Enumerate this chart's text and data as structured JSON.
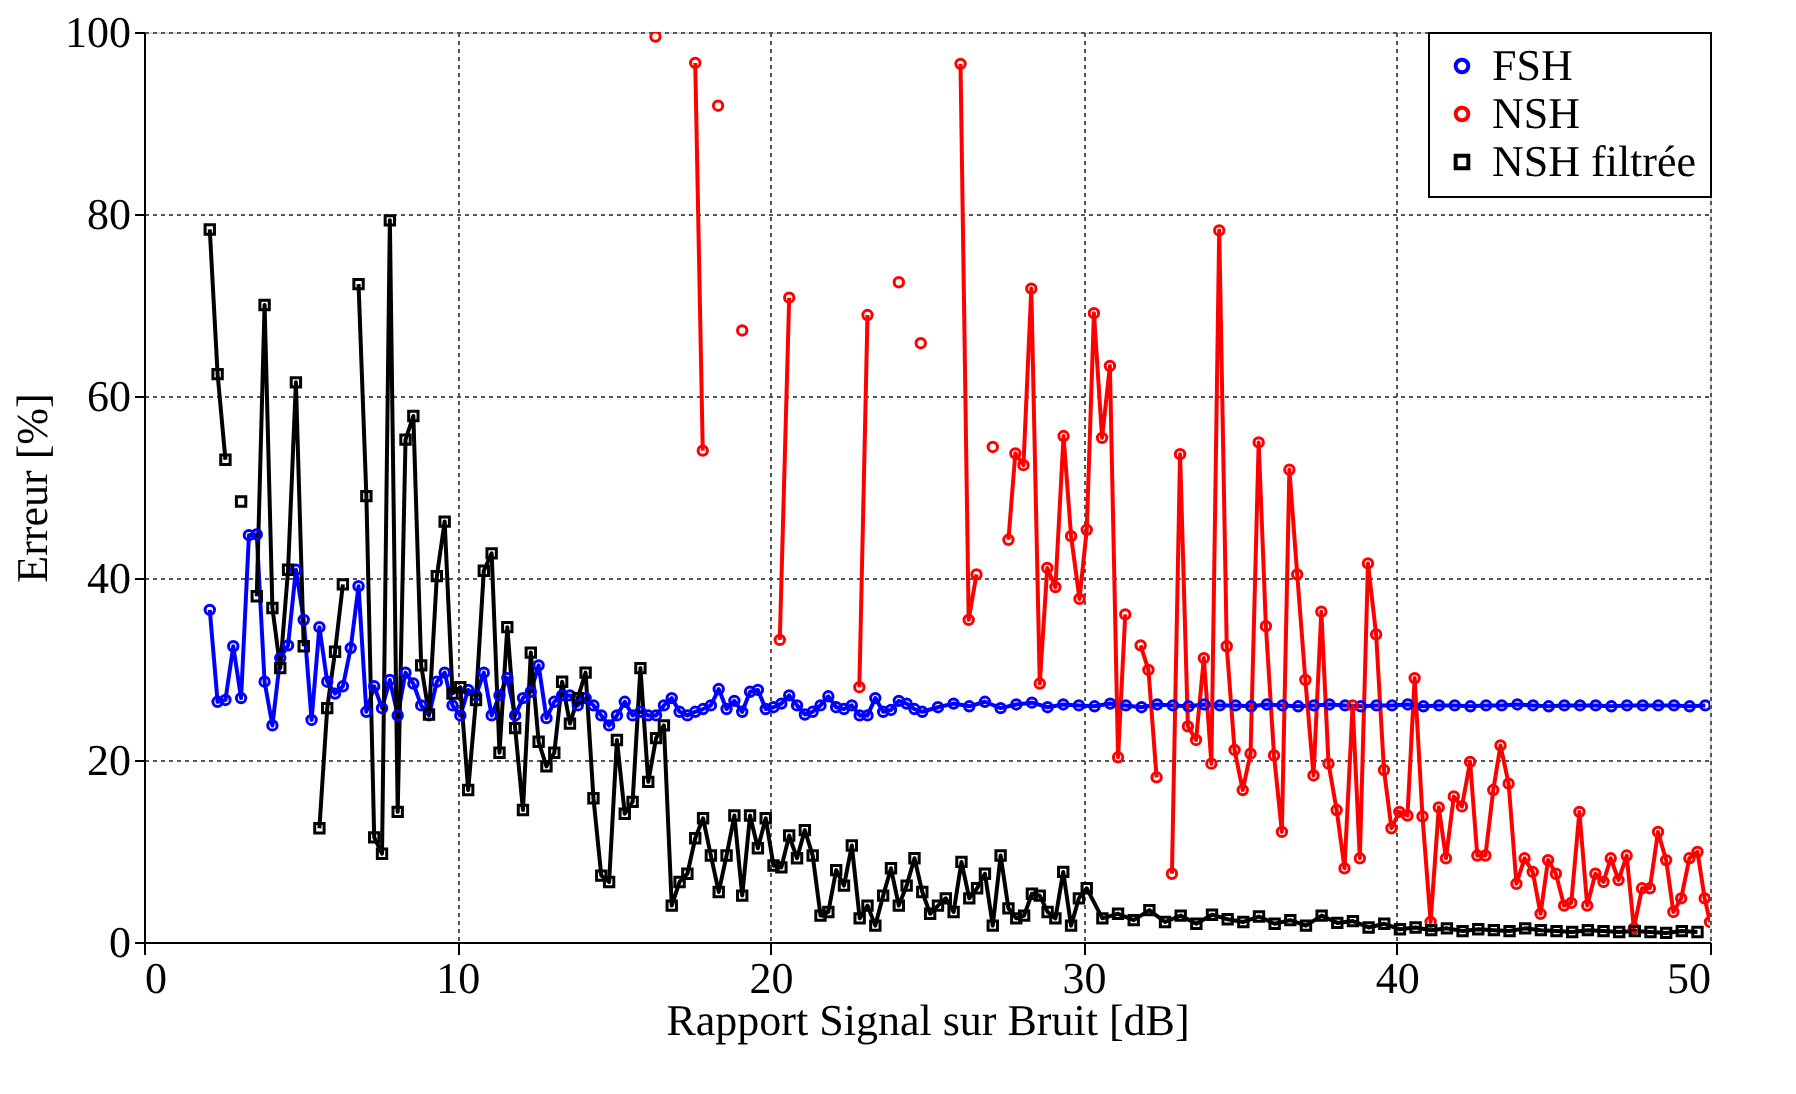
{
  "chart_data": {
    "type": "line",
    "xlabel": "Rapport Signal sur Bruit [dB]",
    "ylabel": "Erreur [%]",
    "xlim": [
      0,
      50
    ],
    "ylim": [
      0,
      100
    ],
    "xticks": [
      0,
      10,
      20,
      30,
      40,
      50
    ],
    "yticks": [
      0,
      20,
      40,
      60,
      80,
      100
    ],
    "grid": true,
    "legend": "top right",
    "line_style": "solid",
    "series": [
      {
        "name": "FSH",
        "color": "#0000ff",
        "marker": "circle",
        "x": [
          2.1,
          2.35,
          2.6,
          2.85,
          3.1,
          3.35,
          3.6,
          3.85,
          4.1,
          4.35,
          4.6,
          4.85,
          5.1,
          5.35,
          5.6,
          5.85,
          6.1,
          6.35,
          6.6,
          6.85,
          7.1,
          7.35,
          7.6,
          7.85,
          8.1,
          8.35,
          8.6,
          8.85,
          9.1,
          9.35,
          9.6,
          9.85,
          10.1,
          10.35,
          10.6,
          10.85,
          11.1,
          11.35,
          11.6,
          11.85,
          12.1,
          12.35,
          12.6,
          12.85,
          13.1,
          13.35,
          13.6,
          13.85,
          14.1,
          14.35,
          14.6,
          14.85,
          15.1,
          15.35,
          15.6,
          15.85,
          16.1,
          16.35,
          16.6,
          16.85,
          17.1,
          17.35,
          17.6,
          17.85,
          18.1,
          18.35,
          18.6,
          18.85,
          19.1,
          19.35,
          19.6,
          19.85,
          20.1,
          20.35,
          20.6,
          20.85,
          21.1,
          21.35,
          21.6,
          21.85,
          22.1,
          22.35,
          22.6,
          22.85,
          23.1,
          23.35,
          23.6,
          23.85,
          24.1,
          24.35,
          24.6,
          24.85,
          25.35,
          25.85,
          26.35,
          26.85,
          27.35,
          27.85,
          28.35,
          28.85,
          29.35,
          29.85,
          30.35,
          30.85,
          31.35,
          31.85,
          32.35,
          32.85,
          33.35,
          33.85,
          34.35,
          34.85,
          35.35,
          35.85,
          36.35,
          36.85,
          37.35,
          37.85,
          38.35,
          38.85,
          39.35,
          39.85,
          40.35,
          40.85,
          41.35,
          41.85,
          42.35,
          42.85,
          43.35,
          43.85,
          44.35,
          44.85,
          45.35,
          45.85,
          46.35,
          46.85,
          47.35,
          47.85,
          48.35,
          48.85,
          49.35,
          49.85
        ],
        "values": [
          36.5,
          26.4,
          26.6,
          32.5,
          26.8,
          44.7,
          44.8,
          28.6,
          23.8,
          31.2,
          32.6,
          40.9,
          35.4,
          24.4,
          34.6,
          28.6,
          27.3,
          28.1,
          32.3,
          39.1,
          25.3,
          28.1,
          25.7,
          28.8,
          24.9,
          29.6,
          28.4,
          26,
          24.9,
          28.6,
          29.6,
          26,
          24.9,
          27.7,
          27.1,
          29.6,
          24.9,
          27.1,
          29,
          24.9,
          26.8,
          27.5,
          30.4,
          24.6,
          26.4,
          27.1,
          27.1,
          26,
          26.8,
          26,
          24.9,
          23.8,
          24.9,
          26.4,
          24.9,
          25.3,
          24.9,
          24.9,
          26,
          26.8,
          25.3,
          24.9,
          25.3,
          25.6,
          26,
          27.8,
          25.6,
          26.5,
          25.3,
          27.5,
          27.7,
          25.6,
          25.8,
          26.2,
          27.1,
          26,
          25,
          25.3,
          26,
          27,
          25.8,
          25.6,
          26,
          24.9,
          24.9,
          26.8,
          25.3,
          25.5,
          26.5,
          26.2,
          25.6,
          25.3,
          25.8,
          26.2,
          25.9,
          26.4,
          25.7,
          26.1,
          26.3,
          25.8,
          26.1,
          26,
          25.9,
          26.2,
          26,
          25.8,
          26.1,
          26,
          25.9,
          26.1,
          26,
          26,
          25.9,
          26.1,
          26,
          25.9,
          26,
          26.1,
          26,
          25.9,
          26,
          26,
          26.1,
          25.9,
          26,
          26,
          25.9,
          26,
          26,
          26.1,
          26,
          25.9,
          26,
          26,
          26,
          25.9,
          26,
          26,
          26,
          26,
          25.9,
          26
        ]
      },
      {
        "name": "NSH",
        "color": "#ff0000",
        "marker": "circle",
        "x": [
          16.33,
          16.58,
          16.84,
          17.09,
          17.35,
          17.6,
          17.84,
          18.09,
          18.33,
          18.58,
          18.84,
          19.1,
          19.35,
          19.6,
          19.84,
          20.09,
          20.3,
          20.6,
          20.85,
          21.1,
          21.35,
          21.6,
          21.85,
          22.1,
          22.35,
          22.6,
          22.84,
          23.1,
          23.35,
          23.6,
          23.85,
          24.1,
          24.35,
          24.6,
          24.8,
          25.07,
          25.33,
          25.58,
          25.84,
          26.07,
          26.33,
          26.58,
          26.84,
          27.1,
          27.35,
          27.6,
          27.82,
          28.08,
          28.33,
          28.6,
          28.84,
          29.1,
          29.36,
          29.6,
          29.87,
          30.1,
          30.33,
          30.59,
          30.84,
          31.1,
          31.33,
          31.57,
          31.82,
          32.07,
          32.33,
          32.57,
          32.82,
          33.08,
          33.33,
          33.59,
          33.84,
          34.08,
          34.33,
          34.57,
          34.82,
          35.08,
          35.33,
          35.59,
          35.82,
          36.08,
          36.33,
          36.57,
          36.82,
          37.08,
          37.34,
          37.59,
          37.82,
          38.08,
          38.33,
          38.59,
          38.82,
          39.08,
          39.34,
          39.59,
          39.83,
          40.08,
          40.34,
          40.57,
          40.82,
          41.08,
          41.34,
          41.57,
          41.82,
          42.08,
          42.34,
          42.57,
          42.83,
          43.08,
          43.31,
          43.57,
          43.82,
          44.08,
          44.34,
          44.59,
          44.83,
          45.08,
          45.34,
          45.57,
          45.83,
          46.08,
          46.34,
          46.6,
          46.83,
          47.08,
          47.34,
          47.57,
          47.83,
          48.08,
          48.34,
          48.6,
          48.83,
          49.08,
          49.34,
          49.6,
          49.83,
          50
        ],
        "values": [
          99.5,
          null,
          null,
          null,
          null,
          96.6,
          54,
          null,
          91.9,
          null,
          null,
          67.2,
          null,
          null,
          null,
          null,
          33.2,
          70.8,
          null,
          null,
          null,
          null,
          null,
          null,
          null,
          null,
          28,
          68.9,
          null,
          null,
          null,
          72.5,
          null,
          null,
          65.8,
          null,
          null,
          null,
          null,
          96.5,
          35.4,
          40.4,
          null,
          54.4,
          null,
          44.2,
          53.7,
          52.4,
          71.8,
          28.4,
          41.1,
          39,
          55.6,
          44.6,
          37.7,
          45.3,
          69.1,
          55.4,
          63.3,
          20.3,
          36,
          null,
          32.6,
          29.9,
          18.1,
          null,
          7.5,
          53.6,
          23.7,
          22.2,
          31.2,
          19.6,
          78.2,
          32.5,
          21.1,
          16.7,
          20.7,
          54.9,
          34.7,
          20.5,
          12.1,
          51.9,
          40.4,
          28.8,
          18.3,
          36.3,
          19.6,
          14.5,
          8.1,
          26,
          9.2,
          41.6,
          33.8,
          18.9,
          12.5,
          14.3,
          13.9,
          29,
          13.8,
          2.2,
          14.8,
          9.2,
          16,
          14.9,
          19.8,
          9.5,
          9.5,
          16.7,
          21.6,
          17.4,
          6.4,
          9.2,
          7.7,
          3.1,
          9,
          7.5,
          4,
          4.3,
          14.3,
          4,
          7.5,
          6.6,
          9.2,
          6.8,
          9.5,
          1.5,
          5.9,
          5.9,
          12.1,
          9,
          3.3,
          4.8,
          9.2,
          9.9,
          4.8,
          2.2
        ]
      },
      {
        "name": "NSH filtrée",
        "color": "#000000",
        "marker": "square",
        "x": [
          2.1,
          2.35,
          2.6,
          2.85,
          3.1,
          3.35,
          3.6,
          3.85,
          4.1,
          4.35,
          4.6,
          4.85,
          5.1,
          5.35,
          5.6,
          5.85,
          6.1,
          6.35,
          6.6,
          6.85,
          7.1,
          7.35,
          7.6,
          7.85,
          8.1,
          8.35,
          8.6,
          8.85,
          9.1,
          9.35,
          9.6,
          9.85,
          10.1,
          10.35,
          10.6,
          10.85,
          11.1,
          11.35,
          11.6,
          11.85,
          12.1,
          12.35,
          12.6,
          12.85,
          13.1,
          13.35,
          13.6,
          13.85,
          14.1,
          14.35,
          14.6,
          14.85,
          15.1,
          15.35,
          15.6,
          15.85,
          16.1,
          16.35,
          16.6,
          16.85,
          17.1,
          17.35,
          17.6,
          17.85,
          18.1,
          18.35,
          18.6,
          18.85,
          19.1,
          19.35,
          19.6,
          19.85,
          20.1,
          20.35,
          20.6,
          20.85,
          21.1,
          21.35,
          21.6,
          21.85,
          22.1,
          22.35,
          22.6,
          22.85,
          23.1,
          23.35,
          23.6,
          23.85,
          24.1,
          24.35,
          24.6,
          24.85,
          25.1,
          25.35,
          25.6,
          25.85,
          26.1,
          26.35,
          26.6,
          26.85,
          27.1,
          27.35,
          27.6,
          27.85,
          28.1,
          28.35,
          28.6,
          28.85,
          29.1,
          29.35,
          29.6,
          29.85,
          30.1,
          30.6,
          31.1,
          31.6,
          32.1,
          32.6,
          33.1,
          33.6,
          34.1,
          34.6,
          35.1,
          35.6,
          36.1,
          36.6,
          37.1,
          37.6,
          38.1,
          38.6,
          39.1,
          39.6,
          40.1,
          40.6,
          41.1,
          41.6,
          42.1,
          42.6,
          43.1,
          43.6,
          44.1,
          44.6,
          45.1,
          45.6,
          46.1,
          46.6,
          47.1,
          47.6,
          48.1,
          48.6,
          49.1,
          49.6
        ],
        "values": [
          78.3,
          62.4,
          53,
          null,
          48.4,
          null,
          38,
          70,
          36.7,
          30.1,
          40.9,
          61.5,
          32.5,
          null,
          12.5,
          25.7,
          31.9,
          39.3,
          null,
          72.3,
          49,
          11.5,
          9.7,
          79.3,
          14.3,
          55.2,
          57.8,
          30.4,
          25,
          40.2,
          46.2,
          27.3,
          28,
          16.7,
          26.6,
          40.8,
          42.7,
          20.8,
          34.6,
          23.5,
          14.5,
          31.8,
          22,
          19.3,
          20.8,
          28.6,
          24,
          26.8,
          29.6,
          15.8,
          7.3,
          6.6,
          22.2,
          14.1,
          15.4,
          30.1,
          17.6,
          22.4,
          23.8,
          4,
          6.6,
          7.5,
          11.4,
          13.6,
          9.5,
          5.5,
          9.5,
          13.9,
          5.1,
          13.9,
          10.3,
          13.6,
          8.4,
          8.2,
          11.7,
          9.2,
          12.3,
          9.5,
          2.9,
          3.3,
          7.9,
          6.2,
          10.6,
          2.6,
          4,
          1.8,
          5.1,
          8.1,
          4,
          6.2,
          9.2,
          5.5,
          3.1,
          4,
          4.8,
          3.3,
          8.8,
          4.8,
          5.9,
          7.5,
          1.8,
          9.5,
          3.7,
          2.6,
          2.9,
          5.3,
          5.1,
          3.3,
          2.6,
          7.7,
          1.8,
          4.8,
          5.9,
          2.6,
          3.1,
          2.4,
          3.5,
          2.2,
          2.9,
          2,
          3,
          2.5,
          2.2,
          2.8,
          2,
          2.4,
          1.8,
          2.9,
          2.1,
          2.3,
          1.6,
          2,
          1.4,
          1.6,
          1.3,
          1.5,
          1.2,
          1.4,
          1.3,
          1.2,
          1.5,
          1.3,
          1.2,
          1.1,
          1.3,
          1.2,
          1.1,
          1.2,
          1.1,
          1,
          1.2,
          1.1
        ]
      }
    ]
  }
}
